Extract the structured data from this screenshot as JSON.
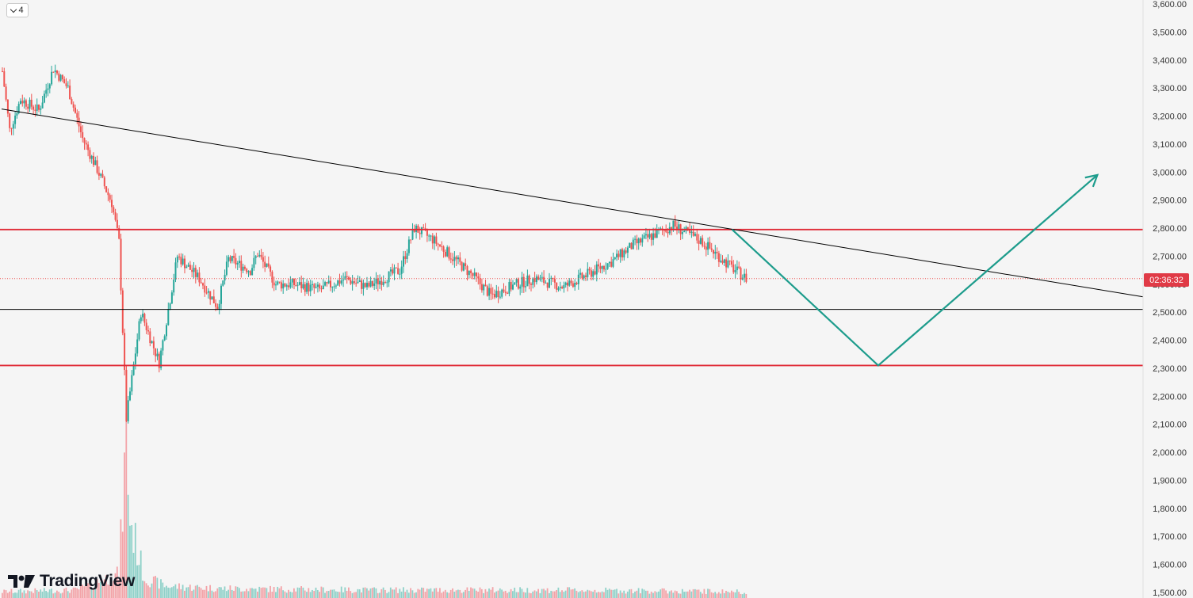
{
  "toolbar": {
    "interval_label": "4"
  },
  "brand": {
    "name": "TradingView",
    "logo_icon": "tradingview-logo-icon"
  },
  "price_tag": {
    "text": "02:36:32",
    "color": "#e03a46"
  },
  "colors": {
    "up": "#26a69a",
    "down": "#ef5350",
    "horizontal_red": "#e02a36",
    "trend_line": "#000000",
    "projection": "#1d9c8c",
    "background": "#f5f5f5"
  },
  "chart_data": {
    "type": "candlestick",
    "y_axis": {
      "min": 1500,
      "max": 3600,
      "position": "right",
      "ticks": [
        "1,500.00",
        "1,600.00",
        "1,700.00",
        "1,800.00",
        "1,900.00",
        "2,000.00",
        "2,100.00",
        "2,200.00",
        "2,300.00",
        "2,400.00",
        "2,500.00",
        "2,600.00",
        "2,700.00",
        "2,800.00",
        "2,900.00",
        "3,000.00",
        "3,100.00",
        "3,200.00",
        "3,300.00",
        "3,400.00",
        "3,500.00",
        "3,600.00"
      ]
    },
    "horizontal_levels": [
      {
        "price": 2795,
        "style": "red"
      },
      {
        "price": 2510,
        "style": "black"
      },
      {
        "price": 2310,
        "style": "red"
      }
    ],
    "current_price": 2620,
    "trend_line": {
      "from": [
        0,
        3225
      ],
      "to": [
        250,
        2555
      ]
    },
    "projection_path": [
      [
        160,
        2795
      ],
      [
        192,
        2310
      ],
      [
        240,
        2990
      ]
    ],
    "price_path": [
      [
        0,
        3360
      ],
      [
        4,
        3150
      ],
      [
        10,
        3260
      ],
      [
        20,
        3220
      ],
      [
        28,
        3370
      ],
      [
        36,
        3300
      ],
      [
        44,
        3120
      ],
      [
        52,
        3010
      ],
      [
        60,
        2890
      ],
      [
        64,
        2750
      ],
      [
        68,
        2120
      ],
      [
        76,
        2500
      ],
      [
        86,
        2320
      ],
      [
        96,
        2700
      ],
      [
        108,
        2620
      ],
      [
        118,
        2520
      ],
      [
        124,
        2690
      ],
      [
        136,
        2650
      ],
      [
        140,
        2710
      ],
      [
        150,
        2600
      ],
      [
        160,
        2600
      ],
      [
        174,
        2580
      ],
      [
        188,
        2620
      ],
      [
        200,
        2590
      ],
      [
        218,
        2650
      ],
      [
        226,
        2800
      ],
      [
        236,
        2760
      ],
      [
        258,
        2630
      ],
      [
        268,
        2560
      ],
      [
        282,
        2600
      ],
      [
        292,
        2620
      ],
      [
        308,
        2590
      ],
      [
        334,
        2680
      ],
      [
        346,
        2740
      ],
      [
        368,
        2810
      ],
      [
        384,
        2750
      ],
      [
        400,
        2660
      ],
      [
        408,
        2620
      ]
    ],
    "volume_profile": [
      [
        0,
        8
      ],
      [
        40,
        10
      ],
      [
        64,
        30
      ],
      [
        68,
        200
      ],
      [
        70,
        100
      ],
      [
        72,
        80
      ],
      [
        78,
        25
      ],
      [
        90,
        15
      ],
      [
        120,
        12
      ],
      [
        200,
        10
      ],
      [
        300,
        10
      ],
      [
        408,
        8
      ]
    ]
  }
}
